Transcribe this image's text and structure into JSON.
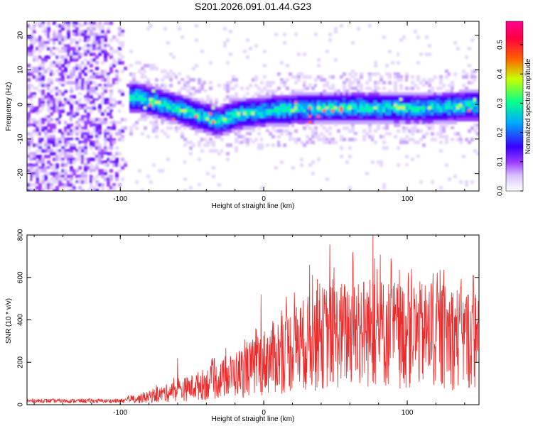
{
  "title": "S201.2026.091.01.44.G23",
  "chart_data": [
    {
      "type": "heatmap",
      "xlabel": "Height of straight line (km)",
      "ylabel": "Frequency (Hz)",
      "xlim": [
        -165,
        150
      ],
      "ylim": [
        -25,
        24
      ],
      "xticks": [
        -100,
        0,
        100
      ],
      "yticks": [
        -20,
        -10,
        0,
        10,
        20
      ],
      "colorbar": {
        "label": "Normalized spectral amplitude",
        "range": [
          0,
          0.58
        ],
        "ticks": [
          0.0,
          0.1,
          0.2,
          0.3,
          0.4,
          0.5
        ],
        "colors": [
          "#ffffff",
          "#9a3cff",
          "#3a00ff",
          "#00a8ff",
          "#00ff90",
          "#c8ff00",
          "#ff6000",
          "#ff0040",
          "#ff0090"
        ]
      },
      "features": {
        "noise_region_x": [
          -165,
          -95
        ],
        "signal_band_start_x": -95,
        "ridge_center_points": [
          {
            "x": -90,
            "y": 2.5
          },
          {
            "x": -75,
            "y": 1
          },
          {
            "x": -60,
            "y": -1
          },
          {
            "x": -45,
            "y": -3
          },
          {
            "x": -32,
            "y": -4.5
          },
          {
            "x": -20,
            "y": -2.5
          },
          {
            "x": 0,
            "y": -1.5
          },
          {
            "x": 25,
            "y": -0.8
          },
          {
            "x": 50,
            "y": -0.5
          },
          {
            "x": 80,
            "y": -0.6
          },
          {
            "x": 110,
            "y": -0.8
          },
          {
            "x": 150,
            "y": 0.2
          }
        ],
        "ridge_halfwidth_hz": 4.5
      }
    },
    {
      "type": "line",
      "xlabel": "Height of straight line (km)",
      "ylabel": "SNR (10 * v/v)",
      "xlim": [
        -165,
        150
      ],
      "ylim": [
        0,
        800
      ],
      "xticks": [
        -100,
        0,
        100
      ],
      "yticks": [
        0,
        200,
        400,
        600,
        800
      ],
      "color": "#ee2a2a",
      "envelope": [
        {
          "x": -165,
          "y": 25
        },
        {
          "x": -100,
          "y": 25
        },
        {
          "x": -85,
          "y": 40
        },
        {
          "x": -70,
          "y": 70
        },
        {
          "x": -50,
          "y": 110
        },
        {
          "x": -30,
          "y": 160
        },
        {
          "x": -10,
          "y": 230
        },
        {
          "x": 10,
          "y": 320
        },
        {
          "x": 40,
          "y": 430
        },
        {
          "x": 70,
          "y": 470
        },
        {
          "x": 100,
          "y": 450
        },
        {
          "x": 130,
          "y": 440
        },
        {
          "x": 150,
          "y": 420
        }
      ],
      "peaks": [
        {
          "x": -60,
          "y": 220
        },
        {
          "x": -2,
          "y": 520
        },
        {
          "x": 32,
          "y": 660
        },
        {
          "x": 46,
          "y": 755
        },
        {
          "x": 62,
          "y": 720
        },
        {
          "x": 76,
          "y": 800
        },
        {
          "x": 89,
          "y": 660
        },
        {
          "x": 103,
          "y": 640
        },
        {
          "x": 118,
          "y": 620
        },
        {
          "x": 146,
          "y": 610
        }
      ]
    }
  ]
}
